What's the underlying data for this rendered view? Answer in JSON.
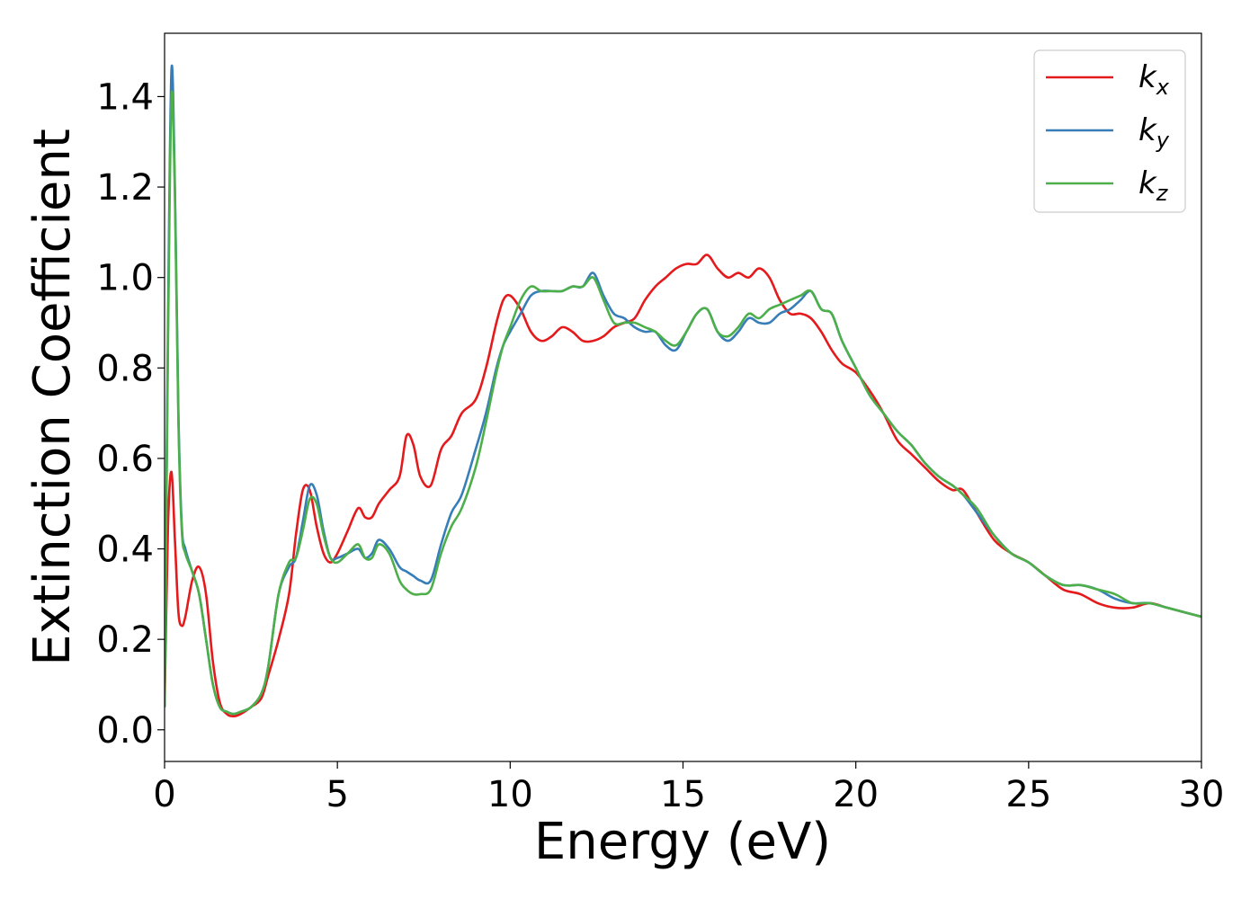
{
  "chart_data": {
    "type": "line",
    "xlabel": "Energy (eV)",
    "ylabel": "Extinction Coefficient",
    "xlim": [
      0,
      30
    ],
    "ylim": [
      -0.07,
      1.54
    ],
    "xticks": [
      0,
      5,
      10,
      15,
      20,
      25,
      30
    ],
    "yticks": [
      0.0,
      0.2,
      0.4,
      0.6,
      0.8,
      1.0,
      1.2,
      1.4
    ],
    "xtick_labels": [
      "0",
      "5",
      "10",
      "15",
      "20",
      "25",
      "30"
    ],
    "ytick_labels": [
      "0.0",
      "0.2",
      "0.4",
      "0.6",
      "0.8",
      "1.0",
      "1.2",
      "1.4"
    ],
    "grid": false,
    "legend_position": "top-right",
    "series": [
      {
        "name": "k",
        "subscript": "x",
        "color": "#e41a1c",
        "x": [
          0,
          0.1,
          0.2,
          0.3,
          0.4,
          0.5,
          0.6,
          0.8,
          1.0,
          1.2,
          1.4,
          1.6,
          1.8,
          2.0,
          2.2,
          2.5,
          2.8,
          3.0,
          3.3,
          3.6,
          3.8,
          4.0,
          4.2,
          4.4,
          4.6,
          4.8,
          5.0,
          5.3,
          5.6,
          5.8,
          6.0,
          6.2,
          6.5,
          6.8,
          7.0,
          7.2,
          7.4,
          7.7,
          8.0,
          8.3,
          8.6,
          9.0,
          9.3,
          9.6,
          9.8,
          10.0,
          10.3,
          10.6,
          10.9,
          11.2,
          11.5,
          11.8,
          12.1,
          12.4,
          12.7,
          13.0,
          13.3,
          13.6,
          13.9,
          14.2,
          14.5,
          14.8,
          15.1,
          15.4,
          15.7,
          16.0,
          16.3,
          16.6,
          16.9,
          17.2,
          17.5,
          17.8,
          18.1,
          18.4,
          18.7,
          19.0,
          19.3,
          19.6,
          20.0,
          20.4,
          20.8,
          21.2,
          21.6,
          22.0,
          22.4,
          22.8,
          23.1,
          23.5,
          24.0,
          24.5,
          25.0,
          25.5,
          26.0,
          26.5,
          27.0,
          27.5,
          28.0,
          28.5,
          29.0,
          29.5,
          30.0
        ],
        "y": [
          0.05,
          0.45,
          0.57,
          0.42,
          0.26,
          0.23,
          0.25,
          0.33,
          0.36,
          0.3,
          0.15,
          0.06,
          0.035,
          0.03,
          0.035,
          0.05,
          0.07,
          0.12,
          0.2,
          0.3,
          0.43,
          0.53,
          0.53,
          0.45,
          0.39,
          0.37,
          0.39,
          0.44,
          0.49,
          0.47,
          0.47,
          0.5,
          0.53,
          0.56,
          0.65,
          0.63,
          0.56,
          0.54,
          0.62,
          0.65,
          0.7,
          0.73,
          0.8,
          0.9,
          0.95,
          0.96,
          0.93,
          0.88,
          0.86,
          0.87,
          0.89,
          0.88,
          0.86,
          0.86,
          0.87,
          0.89,
          0.9,
          0.91,
          0.95,
          0.98,
          1.0,
          1.02,
          1.03,
          1.03,
          1.05,
          1.02,
          1.0,
          1.01,
          1.0,
          1.02,
          1.0,
          0.95,
          0.92,
          0.92,
          0.91,
          0.88,
          0.84,
          0.81,
          0.79,
          0.75,
          0.7,
          0.64,
          0.61,
          0.58,
          0.55,
          0.53,
          0.53,
          0.48,
          0.42,
          0.39,
          0.37,
          0.34,
          0.31,
          0.3,
          0.28,
          0.27,
          0.27,
          0.28,
          0.27,
          0.26,
          0.25
        ]
      },
      {
        "name": "k",
        "subscript": "y",
        "color": "#377eb8",
        "x": [
          0,
          0.1,
          0.2,
          0.3,
          0.4,
          0.5,
          0.6,
          0.8,
          1.0,
          1.2,
          1.4,
          1.6,
          1.8,
          2.0,
          2.2,
          2.5,
          2.8,
          3.0,
          3.3,
          3.6,
          3.8,
          4.0,
          4.2,
          4.4,
          4.6,
          4.8,
          5.0,
          5.3,
          5.6,
          5.8,
          6.0,
          6.2,
          6.5,
          6.8,
          7.0,
          7.2,
          7.4,
          7.7,
          8.0,
          8.3,
          8.6,
          9.0,
          9.3,
          9.6,
          9.8,
          10.0,
          10.3,
          10.6,
          10.9,
          11.2,
          11.5,
          11.8,
          12.1,
          12.4,
          12.7,
          13.0,
          13.3,
          13.6,
          13.9,
          14.2,
          14.5,
          14.8,
          15.1,
          15.4,
          15.7,
          16.0,
          16.3,
          16.6,
          16.9,
          17.2,
          17.5,
          17.8,
          18.1,
          18.4,
          18.7,
          19.0,
          19.3,
          19.6,
          20.0,
          20.4,
          20.8,
          21.2,
          21.6,
          22.0,
          22.4,
          22.8,
          23.1,
          23.5,
          24.0,
          24.5,
          25.0,
          25.5,
          26.0,
          26.5,
          27.0,
          27.5,
          28.0,
          28.5,
          29.0,
          29.5,
          30.0
        ],
        "y": [
          0.05,
          0.9,
          1.46,
          1.2,
          0.7,
          0.45,
          0.4,
          0.35,
          0.3,
          0.2,
          0.1,
          0.05,
          0.04,
          0.035,
          0.04,
          0.05,
          0.08,
          0.14,
          0.3,
          0.36,
          0.38,
          0.46,
          0.54,
          0.52,
          0.44,
          0.38,
          0.38,
          0.39,
          0.4,
          0.38,
          0.39,
          0.42,
          0.4,
          0.36,
          0.35,
          0.34,
          0.33,
          0.33,
          0.41,
          0.48,
          0.52,
          0.62,
          0.7,
          0.8,
          0.85,
          0.88,
          0.92,
          0.96,
          0.97,
          0.97,
          0.97,
          0.98,
          0.98,
          1.01,
          0.96,
          0.92,
          0.91,
          0.89,
          0.88,
          0.88,
          0.85,
          0.84,
          0.88,
          0.92,
          0.93,
          0.88,
          0.86,
          0.88,
          0.91,
          0.9,
          0.9,
          0.92,
          0.93,
          0.95,
          0.97,
          0.93,
          0.92,
          0.86,
          0.8,
          0.74,
          0.7,
          0.66,
          0.63,
          0.59,
          0.56,
          0.54,
          0.52,
          0.48,
          0.43,
          0.39,
          0.37,
          0.34,
          0.32,
          0.32,
          0.31,
          0.29,
          0.28,
          0.28,
          0.27,
          0.26,
          0.25
        ]
      },
      {
        "name": "k",
        "subscript": "z",
        "color": "#4daf4a",
        "x": [
          0,
          0.1,
          0.2,
          0.3,
          0.4,
          0.5,
          0.6,
          0.8,
          1.0,
          1.2,
          1.4,
          1.6,
          1.8,
          2.0,
          2.2,
          2.5,
          2.8,
          3.0,
          3.3,
          3.6,
          3.8,
          4.0,
          4.2,
          4.4,
          4.6,
          4.8,
          5.0,
          5.3,
          5.6,
          5.8,
          6.0,
          6.2,
          6.5,
          6.8,
          7.0,
          7.2,
          7.4,
          7.7,
          8.0,
          8.3,
          8.6,
          9.0,
          9.3,
          9.6,
          9.8,
          10.0,
          10.3,
          10.6,
          10.9,
          11.2,
          11.5,
          11.8,
          12.1,
          12.4,
          12.7,
          13.0,
          13.3,
          13.6,
          13.9,
          14.2,
          14.5,
          14.8,
          15.1,
          15.4,
          15.7,
          16.0,
          16.3,
          16.6,
          16.9,
          17.2,
          17.5,
          17.8,
          18.1,
          18.4,
          18.7,
          19.0,
          19.3,
          19.6,
          20.0,
          20.4,
          20.8,
          21.2,
          21.6,
          22.0,
          22.4,
          22.8,
          23.1,
          23.5,
          24.0,
          24.5,
          25.0,
          25.5,
          26.0,
          26.5,
          27.0,
          27.5,
          28.0,
          28.5,
          29.0,
          29.5,
          30.0
        ],
        "y": [
          0.05,
          0.85,
          1.4,
          1.18,
          0.68,
          0.44,
          0.39,
          0.35,
          0.3,
          0.2,
          0.1,
          0.05,
          0.04,
          0.035,
          0.04,
          0.05,
          0.08,
          0.14,
          0.3,
          0.37,
          0.38,
          0.44,
          0.51,
          0.5,
          0.43,
          0.38,
          0.37,
          0.39,
          0.41,
          0.38,
          0.38,
          0.41,
          0.39,
          0.33,
          0.31,
          0.3,
          0.3,
          0.31,
          0.39,
          0.45,
          0.49,
          0.58,
          0.68,
          0.79,
          0.85,
          0.89,
          0.95,
          0.98,
          0.97,
          0.97,
          0.97,
          0.98,
          0.98,
          1.0,
          0.95,
          0.9,
          0.9,
          0.9,
          0.89,
          0.88,
          0.86,
          0.85,
          0.88,
          0.92,
          0.93,
          0.88,
          0.87,
          0.89,
          0.92,
          0.91,
          0.93,
          0.94,
          0.95,
          0.96,
          0.97,
          0.93,
          0.92,
          0.86,
          0.8,
          0.74,
          0.7,
          0.66,
          0.63,
          0.59,
          0.56,
          0.54,
          0.52,
          0.49,
          0.43,
          0.39,
          0.37,
          0.34,
          0.32,
          0.32,
          0.31,
          0.3,
          0.28,
          0.28,
          0.27,
          0.26,
          0.25
        ]
      }
    ]
  }
}
